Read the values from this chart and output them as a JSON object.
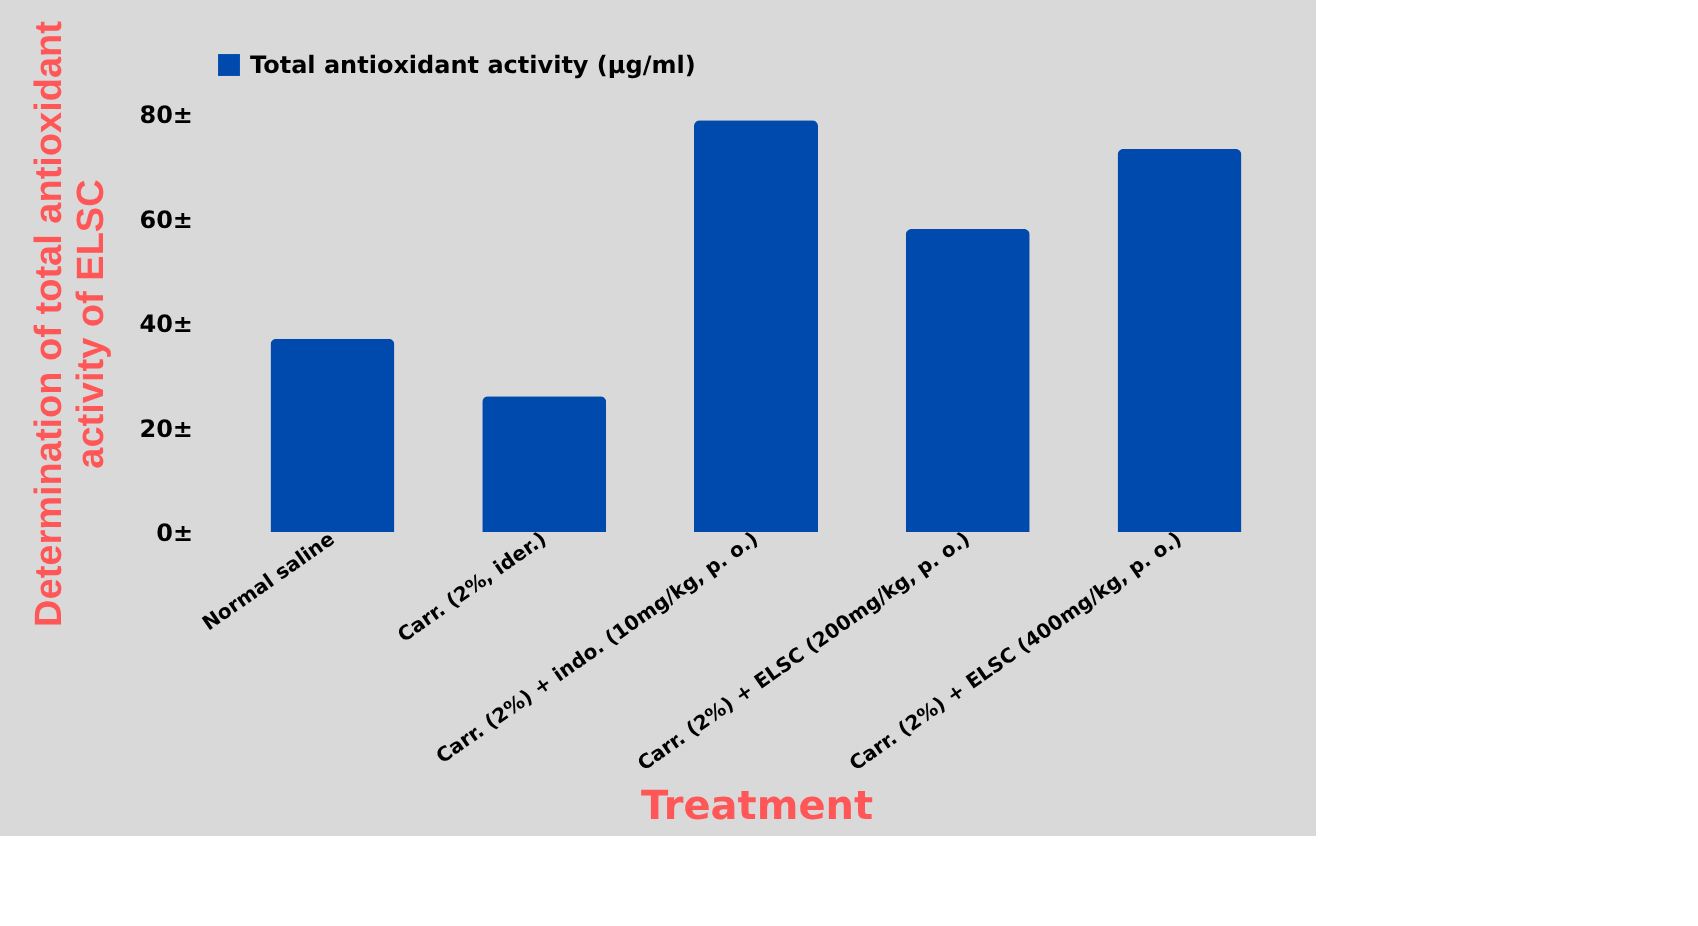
{
  "chart_data": {
    "type": "bar",
    "categories": [
      "Normal saline",
      "Carr. (2%, ider.)",
      "Carr. (2%) + indo. (10mg/kg, p. o.)",
      "Carr. (2%) + ELSC (200mg/kg, p. o.)",
      "Carr. (2%) + ELSC (400mg/kg, p. o.)"
    ],
    "series": [
      {
        "name": "Total antioxidant activity (µg/ml)",
        "color": "#004aad",
        "values": [
          37,
          26,
          78.8,
          58,
          73.3
        ]
      }
    ],
    "xlabel": "Treatment",
    "ylabel": "Determination of total antioxidant\nactivity of ELSC",
    "ylim": [
      0,
      80
    ],
    "yticks": [
      {
        "value": 0,
        "label": "0±"
      },
      {
        "value": 20,
        "label": "20±"
      },
      {
        "value": 40,
        "label": "40±"
      },
      {
        "value": 60,
        "label": "60±"
      },
      {
        "value": 80,
        "label": "80±"
      }
    ],
    "legend": "top"
  }
}
